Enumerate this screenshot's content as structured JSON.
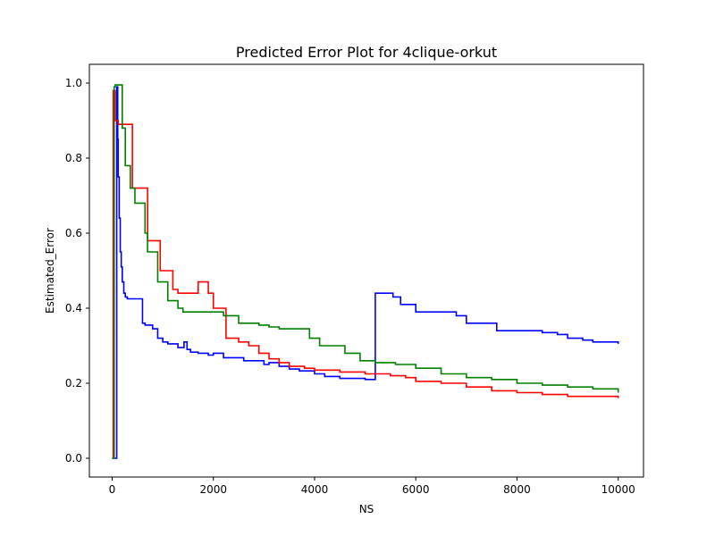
{
  "chart_data": {
    "type": "line",
    "title": "Predicted Error Plot for 4clique-orkut",
    "xlabel": "NS",
    "ylabel": "Estimated_Error",
    "xlim": [
      -450,
      10500
    ],
    "ylim": [
      -0.05,
      1.05
    ],
    "xticks": [
      0,
      2000,
      4000,
      6000,
      8000,
      10000
    ],
    "xtick_labels": [
      "0",
      "2000",
      "4000",
      "6000",
      "8000",
      "10000"
    ],
    "yticks": [
      0.0,
      0.2,
      0.4,
      0.6,
      0.8,
      1.0
    ],
    "ytick_labels": [
      "0.0",
      "0.2",
      "0.4",
      "0.6",
      "0.8",
      "1.0"
    ],
    "grid": false,
    "step": "post",
    "series": [
      {
        "color": "#0000ff",
        "x": [
          0,
          90,
          110,
          120,
          140,
          160,
          180,
          200,
          230,
          260,
          300,
          600,
          650,
          800,
          900,
          1000,
          1100,
          1300,
          1420,
          1480,
          1550,
          1700,
          1900,
          2000,
          2200,
          2600,
          3000,
          3100,
          3300,
          3500,
          3700,
          4000,
          4200,
          4500,
          5000,
          5200,
          5550,
          5700,
          6000,
          6800,
          7000,
          7600,
          8500,
          8800,
          9000,
          9300,
          9500,
          10000
        ],
        "y": [
          0.0,
          0.99,
          0.85,
          0.75,
          0.64,
          0.55,
          0.51,
          0.47,
          0.44,
          0.43,
          0.425,
          0.36,
          0.355,
          0.345,
          0.32,
          0.31,
          0.305,
          0.295,
          0.31,
          0.29,
          0.283,
          0.28,
          0.275,
          0.28,
          0.268,
          0.26,
          0.25,
          0.255,
          0.245,
          0.238,
          0.233,
          0.225,
          0.218,
          0.213,
          0.21,
          0.44,
          0.43,
          0.41,
          0.39,
          0.38,
          0.36,
          0.34,
          0.335,
          0.33,
          0.32,
          0.315,
          0.31,
          0.305
        ]
      },
      {
        "color": "#ff0000",
        "x": [
          0,
          20,
          60,
          120,
          170,
          360,
          400,
          700,
          950,
          1200,
          1300,
          1700,
          1900,
          2000,
          2250,
          2500,
          2700,
          2900,
          3100,
          3300,
          3500,
          3800,
          4000,
          4500,
          5000,
          5500,
          5800,
          6000,
          6500,
          7000,
          7500,
          8000,
          8500,
          9000,
          9500,
          10000
        ],
        "y": [
          0.0,
          0.98,
          0.9,
          0.89,
          0.89,
          0.89,
          0.72,
          0.58,
          0.5,
          0.45,
          0.44,
          0.47,
          0.44,
          0.4,
          0.32,
          0.31,
          0.3,
          0.28,
          0.265,
          0.255,
          0.245,
          0.24,
          0.235,
          0.23,
          0.225,
          0.22,
          0.215,
          0.205,
          0.2,
          0.19,
          0.18,
          0.175,
          0.17,
          0.165,
          0.165,
          0.16
        ]
      },
      {
        "color": "#008000",
        "x": [
          0,
          40,
          60,
          140,
          190,
          200,
          260,
          360,
          450,
          650,
          700,
          900,
          1100,
          1300,
          1400,
          1900,
          2200,
          2500,
          2900,
          3100,
          3300,
          3900,
          4100,
          4600,
          4900,
          5200,
          5600,
          6000,
          6500,
          7000,
          7500,
          8000,
          8500,
          9000,
          9500,
          10000
        ],
        "y": [
          0.0,
          0.99,
          0.995,
          0.995,
          0.995,
          0.88,
          0.78,
          0.72,
          0.68,
          0.6,
          0.55,
          0.47,
          0.42,
          0.4,
          0.39,
          0.39,
          0.38,
          0.36,
          0.355,
          0.35,
          0.345,
          0.32,
          0.3,
          0.28,
          0.26,
          0.255,
          0.25,
          0.24,
          0.225,
          0.215,
          0.21,
          0.2,
          0.195,
          0.19,
          0.185,
          0.175
        ]
      }
    ]
  }
}
